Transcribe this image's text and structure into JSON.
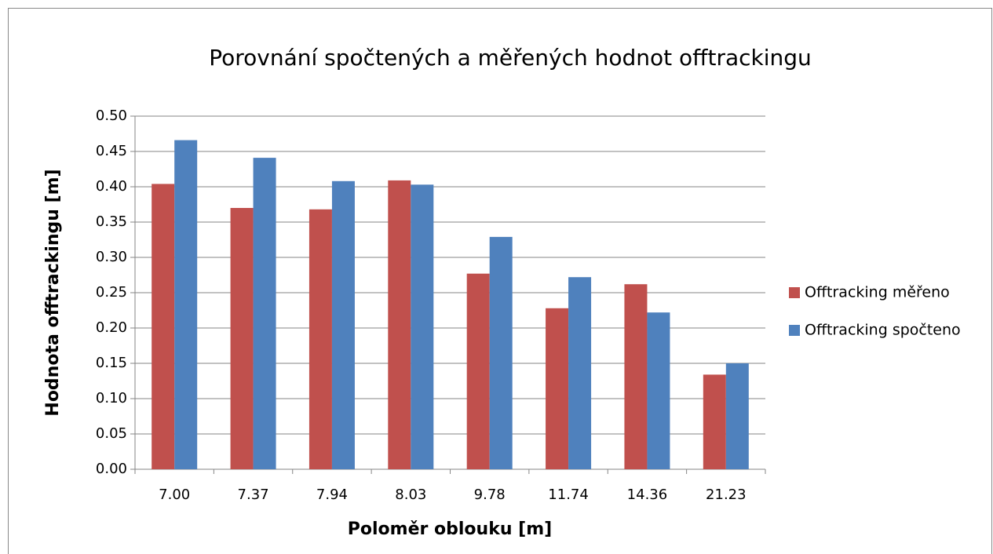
{
  "chart_data": {
    "type": "bar",
    "title": "Porovnání spočtených a měřených hodnot offtrackingu",
    "xlabel": "Poloměr oblouku  [m]",
    "ylabel": "Hodnota offtrackingu [m]",
    "categories": [
      "7.00",
      "7.37",
      "7.94",
      "8.03",
      "9.78",
      "11.74",
      "14.36",
      "21.23"
    ],
    "series": [
      {
        "name": "Offtracking měřeno",
        "color": "#c0504d",
        "values": [
          0.404,
          0.37,
          0.368,
          0.409,
          0.277,
          0.228,
          0.262,
          0.134
        ]
      },
      {
        "name": "Offtracking spočteno",
        "color": "#4f81bd",
        "values": [
          0.466,
          0.441,
          0.408,
          0.403,
          0.329,
          0.272,
          0.222,
          0.15
        ]
      }
    ],
    "ylim": [
      0,
      0.5
    ],
    "yticks": [
      {
        "value": 0,
        "label": "0.00"
      },
      {
        "value": 0.05,
        "label": "0.05"
      },
      {
        "value": 0.1,
        "label": "0.10"
      },
      {
        "value": 0.15,
        "label": "0.15"
      },
      {
        "value": 0.2,
        "label": "0.20"
      },
      {
        "value": 0.25,
        "label": "0.25"
      },
      {
        "value": 0.3,
        "label": "0.30"
      },
      {
        "value": 0.35,
        "label": "0.35"
      },
      {
        "value": 0.4,
        "label": "0.40"
      },
      {
        "value": 0.45,
        "label": "0.45"
      },
      {
        "value": 0.5,
        "label": "0.50"
      }
    ],
    "grid": true,
    "legend": "right"
  }
}
